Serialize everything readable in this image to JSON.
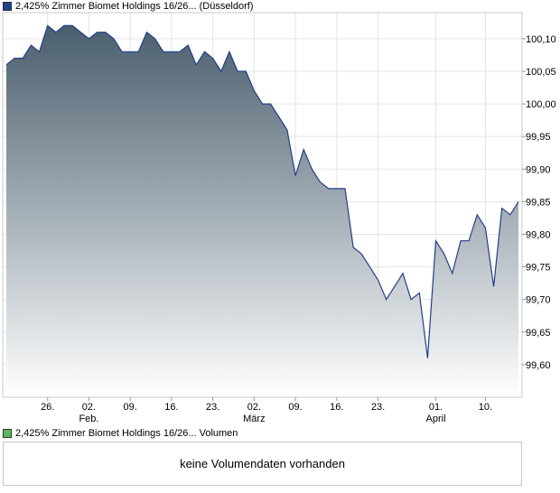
{
  "legend_price": {
    "label": "2,425% Zimmer Biomet Holdings 16/26... (Düsseldorf)",
    "color": "#1f3f8f"
  },
  "legend_volume": {
    "label": "2,425% Zimmer Biomet Holdings 16/26... Volumen",
    "color": "#5cb85c"
  },
  "volume_message": "keine Volumendaten vorhanden",
  "chart_data": {
    "type": "area",
    "series": [
      {
        "values": [
          100.06,
          100.07,
          100.07,
          100.09,
          100.08,
          100.12,
          100.11,
          100.12,
          100.12,
          100.11,
          100.1,
          100.11,
          100.11,
          100.1,
          100.08,
          100.08,
          100.08,
          100.11,
          100.1,
          100.08,
          100.08,
          100.08,
          100.09,
          100.06,
          100.08,
          100.07,
          100.05,
          100.08,
          100.05,
          100.05,
          100.02,
          100.0,
          100.0,
          99.98,
          99.96,
          99.89,
          99.93,
          99.9,
          99.88,
          99.87,
          99.87,
          99.87,
          99.78,
          99.77,
          99.75,
          99.73,
          99.7,
          99.72,
          99.74,
          99.7,
          99.71,
          99.61,
          99.79,
          99.77,
          99.74,
          99.79,
          99.79,
          99.83,
          99.81,
          99.72,
          99.84,
          99.83,
          99.85
        ]
      }
    ],
    "ylim": [
      99.55,
      100.14
    ],
    "y_ticks": [
      "100,10",
      "100,05",
      "100,00",
      "99,95",
      "99,90",
      "99,85",
      "99,80",
      "99,75",
      "99,70",
      "99,65",
      "99,60"
    ],
    "y_tick_values": [
      100.1,
      100.05,
      100.0,
      99.95,
      99.9,
      99.85,
      99.8,
      99.75,
      99.7,
      99.65,
      99.6
    ],
    "x_ticks": [
      {
        "day": "26.",
        "month": "",
        "index": 5
      },
      {
        "day": "02.",
        "month": "Feb.",
        "index": 10
      },
      {
        "day": "09.",
        "month": "",
        "index": 15
      },
      {
        "day": "16.",
        "month": "",
        "index": 20
      },
      {
        "day": "23.",
        "month": "",
        "index": 25
      },
      {
        "day": "02.",
        "month": "März",
        "index": 30
      },
      {
        "day": "09.",
        "month": "",
        "index": 35
      },
      {
        "day": "16.",
        "month": "",
        "index": 40
      },
      {
        "day": "23.",
        "month": "",
        "index": 45
      },
      {
        "day": "01.",
        "month": "April",
        "index": 52
      },
      {
        "day": "10.",
        "month": "",
        "index": 58
      }
    ],
    "grid": true,
    "line_color": "#1f3f8f",
    "fill_top_color": "#4a5e6d",
    "fill_bottom_color": "#ffffff"
  }
}
